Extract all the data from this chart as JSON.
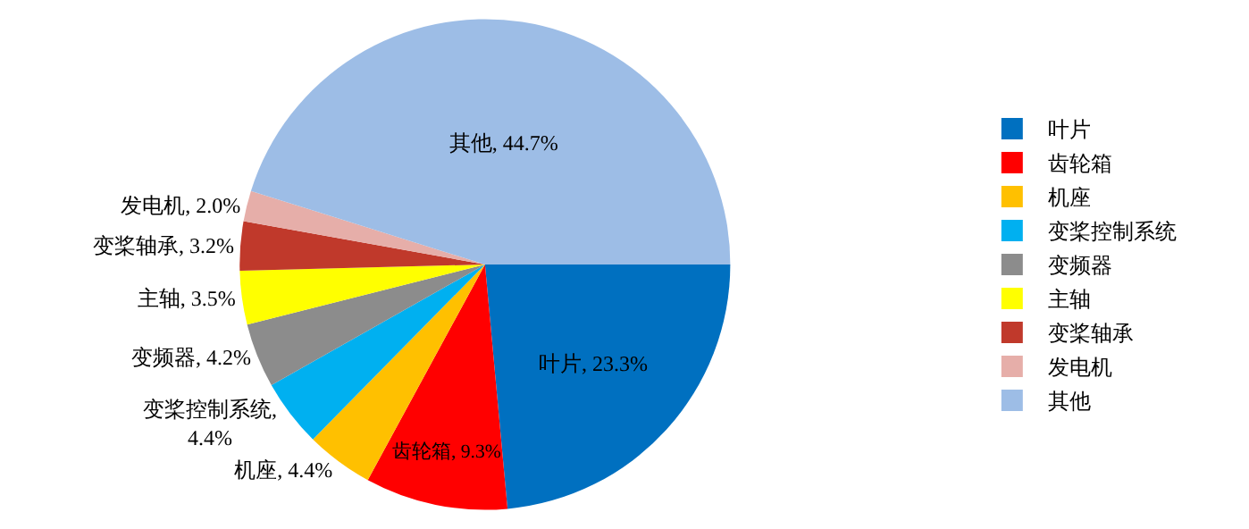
{
  "chart_data": {
    "type": "pie",
    "categories": [
      "叶片",
      "齿轮箱",
      "机座",
      "变桨控制系统",
      "变频器",
      "主轴",
      "变桨轴承",
      "发电机",
      "其他"
    ],
    "values": [
      23.3,
      9.3,
      4.4,
      4.4,
      4.2,
      3.5,
      3.2,
      2.0,
      44.7
    ],
    "colors": [
      "#0070c0",
      "#ff0000",
      "#ffc000",
      "#00b0f0",
      "#8c8c8c",
      "#ffff00",
      "#c0392b",
      "#e6aea9",
      "#9dbde6"
    ],
    "value_labels": [
      "叶片, 23.3%",
      "齿轮箱, 9.3%",
      "机座, 4.4%",
      "变桨控制系统,\n4.4%",
      "变频器, 4.2%",
      "主轴, 3.5%",
      "变桨轴承, 3.2%",
      "发电机, 2.0%",
      "其他, 44.7%"
    ],
    "legend": "right"
  }
}
